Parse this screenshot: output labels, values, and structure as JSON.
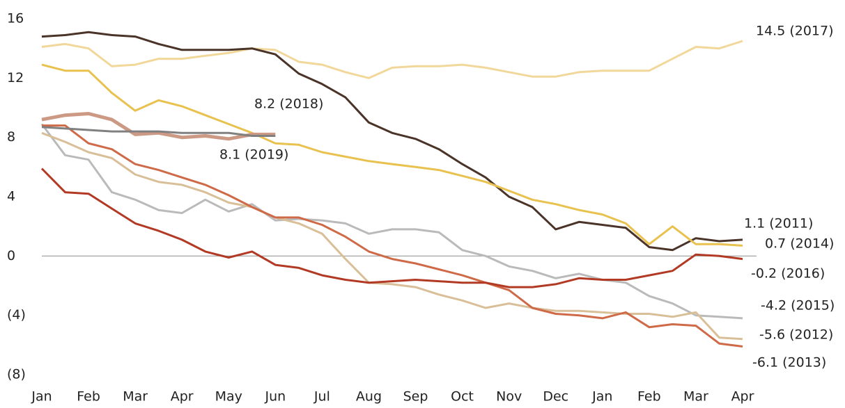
{
  "chart_data": {
    "type": "line",
    "x": [
      0,
      0.5,
      1,
      1.5,
      2,
      2.5,
      3,
      3.5,
      4,
      4.5,
      5,
      5.5,
      6,
      6.5,
      7,
      7.5,
      8,
      8.5,
      9,
      9.5,
      10,
      10.5,
      11,
      11.5,
      12,
      12.5,
      13,
      13.5,
      14,
      14.5,
      15
    ],
    "xlim": [
      0,
      15
    ],
    "xticks": [
      {
        "value": 0,
        "label": "Jan"
      },
      {
        "value": 1,
        "label": "Feb"
      },
      {
        "value": 2,
        "label": "Mar"
      },
      {
        "value": 3,
        "label": "Apr"
      },
      {
        "value": 4,
        "label": "May"
      },
      {
        "value": 5,
        "label": "Jun"
      },
      {
        "value": 6,
        "label": "Jul"
      },
      {
        "value": 7,
        "label": "Aug"
      },
      {
        "value": 8,
        "label": "Sep"
      },
      {
        "value": 9,
        "label": "Oct"
      },
      {
        "value": 10,
        "label": "Nov"
      },
      {
        "value": 11,
        "label": "Dec"
      },
      {
        "value": 12,
        "label": "Jan"
      },
      {
        "value": 13,
        "label": "Feb"
      },
      {
        "value": 14,
        "label": "Mar"
      },
      {
        "value": 15,
        "label": "Apr"
      }
    ],
    "ylim": [
      -8,
      16
    ],
    "yticks": [
      16,
      12,
      8,
      4,
      0,
      {
        "value": -4,
        "label": "(4)"
      },
      {
        "value": -8,
        "label": "(8)"
      }
    ],
    "series": [
      {
        "name": "14.5 (2017)",
        "color": "#f1d79a",
        "values": [
          14.1,
          14.3,
          14.0,
          12.8,
          12.9,
          13.3,
          13.3,
          13.5,
          13.7,
          14.0,
          13.9,
          13.1,
          12.9,
          12.4,
          12.0,
          12.7,
          12.8,
          12.8,
          12.9,
          12.7,
          12.4,
          12.1,
          12.1,
          12.4,
          12.5,
          12.5,
          12.5,
          13.3,
          14.1,
          14.0,
          14.5
        ]
      },
      {
        "name": "1.1 (2011)",
        "color": "#4a3328",
        "values": [
          14.8,
          14.9,
          15.1,
          14.9,
          14.8,
          14.3,
          13.9,
          13.9,
          13.9,
          14.0,
          13.6,
          12.3,
          11.6,
          10.7,
          9.0,
          8.3,
          7.9,
          7.2,
          6.2,
          5.3,
          4.0,
          3.3,
          1.8,
          2.3,
          2.1,
          1.9,
          0.6,
          0.4,
          1.2,
          1.0,
          1.1
        ]
      },
      {
        "name": "0.7 (2014)",
        "color": "#e8c14e",
        "values": [
          12.9,
          12.5,
          12.5,
          11.0,
          9.8,
          10.5,
          10.1,
          9.5,
          8.9,
          8.3,
          7.6,
          7.5,
          7.0,
          6.7,
          6.4,
          6.2,
          6.0,
          5.8,
          5.4,
          5.0,
          4.4,
          3.8,
          3.5,
          3.1,
          2.8,
          2.2,
          0.8,
          2.0,
          0.8,
          0.8,
          0.7
        ]
      },
      {
        "name": "-4.2 (2015)",
        "color": "#bbbaba",
        "values": [
          8.9,
          6.8,
          6.5,
          4.3,
          3.8,
          3.1,
          2.9,
          3.8,
          3.0,
          3.5,
          2.4,
          2.5,
          2.4,
          2.2,
          1.5,
          1.8,
          1.8,
          1.6,
          0.4,
          0.0,
          -0.7,
          -1.0,
          -1.5,
          -1.2,
          -1.6,
          -1.8,
          -2.7,
          -3.2,
          -4.0,
          -4.1,
          -4.2
        ]
      },
      {
        "name": "-5.6 (2012)",
        "color": "#d9bf98",
        "values": [
          8.3,
          7.7,
          7.0,
          6.6,
          5.5,
          5.0,
          4.8,
          4.3,
          3.6,
          3.3,
          2.6,
          2.2,
          1.5,
          -0.2,
          -1.8,
          -1.9,
          -2.1,
          -2.6,
          -3.0,
          -3.5,
          -3.2,
          -3.5,
          -3.7,
          -3.7,
          -3.8,
          -3.9,
          -3.9,
          -4.1,
          -3.8,
          -5.5,
          -5.6
        ]
      },
      {
        "name": "-6.1 (2013)",
        "color": "#cf6a48",
        "values": [
          8.8,
          8.8,
          7.6,
          7.2,
          6.2,
          5.8,
          5.3,
          4.8,
          4.1,
          3.3,
          2.6,
          2.6,
          2.1,
          1.3,
          0.3,
          -0.2,
          -0.5,
          -0.9,
          -1.3,
          -1.8,
          -2.3,
          -3.5,
          -3.9,
          -4.0,
          -4.2,
          -3.8,
          -4.8,
          -4.6,
          -4.7,
          -5.9,
          -6.1
        ]
      },
      {
        "name": "-0.2 (2016)",
        "color": "#b23a25",
        "values": [
          5.9,
          4.3,
          4.2,
          3.2,
          2.2,
          1.7,
          1.1,
          0.3,
          -0.1,
          0.3,
          -0.6,
          -0.8,
          -1.3,
          -1.6,
          -1.8,
          -1.7,
          -1.6,
          -1.7,
          -1.8,
          -1.8,
          -2.1,
          -2.1,
          -1.9,
          -1.5,
          -1.6,
          -1.6,
          -1.3,
          -1.0,
          0.1,
          0.0,
          -0.2
        ]
      },
      {
        "name": "8.2 (2018)",
        "color": "#cc9a84",
        "values": [
          9.2,
          9.5,
          9.6,
          9.2,
          8.2,
          8.3,
          8.0,
          8.1,
          7.9,
          8.2,
          8.2,
          null,
          null,
          null,
          null,
          null,
          null,
          null,
          null,
          null,
          null,
          null,
          null,
          null,
          null,
          null,
          null,
          null,
          null,
          null,
          null
        ]
      },
      {
        "name": "8.1 (2019)",
        "color": "#808080",
        "values": [
          8.7,
          8.6,
          8.5,
          8.4,
          8.4,
          8.4,
          8.3,
          8.3,
          8.3,
          8.1,
          8.1,
          null,
          null,
          null,
          null,
          null,
          null,
          null,
          null,
          null,
          null,
          null,
          null,
          null,
          null,
          null,
          null,
          null,
          null,
          null,
          null
        ]
      }
    ]
  }
}
